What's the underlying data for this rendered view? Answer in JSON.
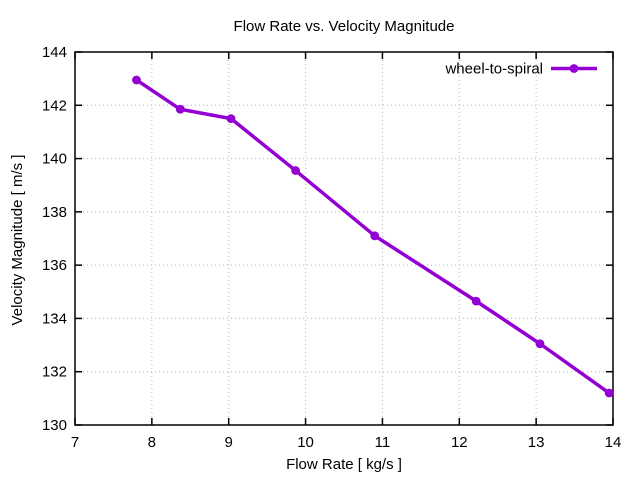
{
  "chart_data": {
    "type": "line",
    "title": "Flow Rate vs. Velocity Magnitude",
    "xlabel": "Flow Rate [ kg/s ]",
    "ylabel": "Velocity Magnitude [ m/s ]",
    "xlim": [
      7,
      14
    ],
    "ylim": [
      130,
      144
    ],
    "xticks": [
      7,
      8,
      9,
      10,
      11,
      12,
      13,
      14
    ],
    "yticks": [
      130,
      132,
      134,
      136,
      138,
      140,
      142,
      144
    ],
    "grid": true,
    "grid_style": "dotted",
    "legend_position": "top-right-inside",
    "background_color": "#ffffff",
    "axis_color": "#000000",
    "grid_color": "#b8b8b8",
    "text_color": "#000000",
    "series": [
      {
        "name": "wheel-to-spiral",
        "color": "#9400d3",
        "marker": "filled-circle",
        "line_width": 3.5,
        "x": [
          7.8,
          8.37,
          9.03,
          9.87,
          10.9,
          12.22,
          13.05,
          13.95
        ],
        "y": [
          142.95,
          141.85,
          141.5,
          139.55,
          137.1,
          134.65,
          133.05,
          131.2
        ]
      }
    ]
  }
}
